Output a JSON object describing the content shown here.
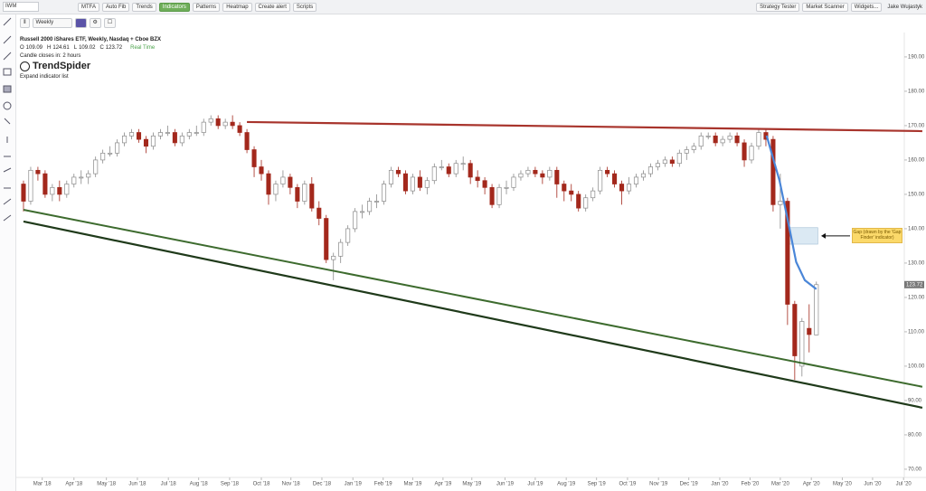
{
  "toolbar": {
    "symbol": "IWM",
    "interval": "Weekly",
    "buttons": [
      "MTFA",
      "Auto Fib",
      "Trends",
      "Indicators",
      "Patterns",
      "Heatmap",
      "Create alert",
      "Scripts"
    ],
    "active_button": 3,
    "right_buttons": [
      "Strategy Tester",
      "Market Scanner",
      "Widgets..."
    ],
    "user": "Jake Wujastyk"
  },
  "chart_data": {
    "type": "candlestick",
    "title": "Russell 2000 iShares ETF, Weekly, Nasdaq + Cboe BZX",
    "ohlc_letters": [
      "O",
      "H",
      "L",
      "C"
    ],
    "status": "Real Time",
    "subtitle": "Candle closes in: 2 hours",
    "brand": "TrendSpider",
    "expand": "Expand indicator list",
    "up_color": "#8a8a8a",
    "down_color": "#a3281c",
    "open": [
      153,
      148,
      157,
      156,
      150,
      152,
      150,
      153,
      155,
      155,
      156,
      160,
      162,
      162,
      165,
      167,
      168,
      166,
      164,
      167,
      168,
      168,
      165,
      167,
      168,
      168,
      171,
      172,
      170,
      171,
      170,
      168,
      163,
      158,
      156,
      150,
      153,
      155,
      152,
      148,
      153,
      146,
      143,
      131,
      132,
      136,
      140,
      145,
      145,
      148,
      148,
      153,
      157,
      156,
      151,
      155,
      152,
      154,
      158,
      158,
      156,
      159,
      159,
      155,
      154,
      152,
      147,
      152,
      152,
      155,
      156,
      157,
      156,
      155,
      157,
      153,
      151,
      150,
      146,
      149,
      151,
      157,
      156,
      153,
      151,
      153,
      155,
      156,
      158,
      159,
      160,
      159,
      162,
      163,
      164,
      167,
      167,
      165,
      166,
      167,
      165,
      160,
      164,
      168,
      166,
      147,
      148,
      118,
      100,
      111,
      109.09
    ],
    "high": [
      154,
      158,
      158,
      157,
      153,
      154,
      154,
      156,
      157,
      157,
      161,
      163,
      164,
      166,
      168,
      169,
      169,
      167,
      168,
      169,
      170,
      169,
      168,
      169,
      170,
      172,
      173,
      173,
      172,
      173,
      171,
      169,
      164,
      160,
      157,
      154,
      157,
      156,
      153,
      154,
      155,
      148,
      144,
      133,
      137,
      141,
      146,
      147,
      149,
      150,
      154,
      158,
      158,
      157,
      156,
      157,
      155,
      159,
      160,
      159,
      160,
      161,
      160,
      157,
      155,
      153,
      153,
      154,
      156,
      157,
      158,
      158,
      157,
      158,
      158,
      154,
      153,
      151,
      150,
      152,
      158,
      158,
      157,
      154,
      155,
      156,
      157,
      159,
      160,
      161,
      161,
      163,
      164,
      165,
      168,
      168,
      168,
      167,
      168,
      168,
      166,
      165,
      169,
      169,
      167,
      156,
      149,
      119,
      114,
      118,
      124.61
    ],
    "low": [
      145,
      147,
      154,
      149,
      148,
      148,
      149,
      152,
      153,
      153,
      155,
      159,
      161,
      161,
      164,
      166,
      165,
      162,
      163,
      166,
      167,
      164,
      164,
      166,
      167,
      167,
      170,
      169,
      169,
      169,
      167,
      162,
      155,
      154,
      147,
      148,
      152,
      150,
      146,
      147,
      145,
      141,
      130,
      125,
      130,
      135,
      139,
      143,
      144,
      146,
      147,
      152,
      155,
      150,
      150,
      151,
      150,
      153,
      157,
      155,
      155,
      157,
      153,
      152,
      150,
      146,
      146,
      150,
      151,
      154,
      155,
      155,
      153,
      154,
      149,
      148,
      148,
      145,
      145,
      148,
      150,
      155,
      152,
      147,
      150,
      152,
      154,
      155,
      157,
      158,
      158,
      158,
      160,
      162,
      163,
      166,
      164,
      164,
      165,
      164,
      158,
      159,
      163,
      164,
      145,
      140,
      112,
      96,
      97,
      104,
      109.02
    ],
    "close": [
      148,
      157,
      156,
      150,
      152,
      150,
      153,
      155,
      155,
      156,
      160,
      162,
      162,
      165,
      167,
      168,
      166,
      164,
      167,
      168,
      168,
      165,
      167,
      168,
      168,
      171,
      172,
      170,
      171,
      170,
      168,
      163,
      158,
      156,
      150,
      153,
      155,
      152,
      148,
      153,
      146,
      143,
      131,
      132,
      136,
      140,
      145,
      145,
      148,
      148,
      153,
      157,
      156,
      151,
      155,
      152,
      154,
      158,
      158,
      156,
      159,
      159,
      155,
      154,
      152,
      147,
      152,
      152,
      155,
      156,
      157,
      156,
      155,
      157,
      153,
      151,
      150,
      146,
      149,
      151,
      157,
      156,
      153,
      151,
      153,
      155,
      156,
      158,
      159,
      160,
      159,
      162,
      163,
      164,
      167,
      167,
      165,
      166,
      167,
      165,
      160,
      164,
      168,
      166,
      147,
      148,
      118,
      103,
      113,
      109.2,
      123.72
    ],
    "xlim": [
      -0.75,
      122.2
    ],
    "xticks": [
      {
        "value": 2.6,
        "label": "Mar '18"
      },
      {
        "value": 7.0,
        "label": "Apr '18"
      },
      {
        "value": 11.5,
        "label": "May '18"
      },
      {
        "value": 15.8,
        "label": "Jun '18"
      },
      {
        "value": 20.1,
        "label": "Jul '18"
      },
      {
        "value": 24.3,
        "label": "Aug '18"
      },
      {
        "value": 28.6,
        "label": "Sep '18"
      },
      {
        "value": 33.0,
        "label": "Oct '18"
      },
      {
        "value": 37.1,
        "label": "Nov '18"
      },
      {
        "value": 41.4,
        "label": "Dec '18"
      },
      {
        "value": 45.7,
        "label": "Jan '19"
      },
      {
        "value": 49.9,
        "label": "Feb '19"
      },
      {
        "value": 54.0,
        "label": "Mar '19"
      },
      {
        "value": 58.2,
        "label": "Apr '19"
      },
      {
        "value": 62.2,
        "label": "May '19"
      },
      {
        "value": 66.8,
        "label": "Jun '19"
      },
      {
        "value": 71.0,
        "label": "Jul '19"
      },
      {
        "value": 75.3,
        "label": "Aug '19"
      },
      {
        "value": 79.5,
        "label": "Sep '19"
      },
      {
        "value": 83.8,
        "label": "Oct '19"
      },
      {
        "value": 88.1,
        "label": "Nov '19"
      },
      {
        "value": 92.3,
        "label": "Dec '19"
      },
      {
        "value": 96.6,
        "label": "Jan '20"
      },
      {
        "value": 100.8,
        "label": "Feb '20"
      },
      {
        "value": 105.0,
        "label": "Mar '20"
      },
      {
        "value": 109.3,
        "label": "Apr '20"
      },
      {
        "value": 113.6,
        "label": "May '20"
      },
      {
        "value": 117.8,
        "label": "Jun '20"
      },
      {
        "value": 122.1,
        "label": "Jul '20"
      }
    ],
    "ylim": [
      68.4,
      193.4
    ],
    "yticks": [
      {
        "value": 190,
        "label": "190.00"
      },
      {
        "value": 180,
        "label": "180.00"
      },
      {
        "value": 170,
        "label": "170.00"
      },
      {
        "value": 160,
        "label": "160.00"
      },
      {
        "value": 150,
        "label": "150.00"
      },
      {
        "value": 140,
        "label": "140.00"
      },
      {
        "value": 130,
        "label": "130.00"
      },
      {
        "value": 120,
        "label": "120.00"
      },
      {
        "value": 110,
        "label": "110.00"
      },
      {
        "value": 100,
        "label": "100.00"
      },
      {
        "value": 90,
        "label": "90.00"
      },
      {
        "value": 80,
        "label": "80.00"
      },
      {
        "value": 70,
        "label": "70.00"
      }
    ],
    "trendlines": [
      {
        "color": "#a8342c",
        "width": 2.2,
        "x": [
          31.0,
          124.7
        ],
        "y": [
          171.05,
          168.4
        ]
      },
      {
        "color": "#3d6b2e",
        "width": 2,
        "x": [
          0,
          124.7
        ],
        "y": [
          145.5,
          94.0
        ]
      },
      {
        "color": "#1f3a1a",
        "width": 2.2,
        "x": [
          0,
          124.7
        ],
        "y": [
          142.1,
          87.9
        ]
      },
      {
        "color": "#4a86d8",
        "width": 2.2,
        "x": [
          103.1,
          104.9,
          106.2,
          107.2,
          108.4,
          110.0
        ],
        "y": [
          167.1,
          153.9,
          140.8,
          130.3,
          125.0,
          122.4
        ]
      }
    ],
    "gap": {
      "x": [
        106.2,
        110.2
      ],
      "y": [
        140.3,
        135.5
      ],
      "label": "Gap (drawn by the 'Gap Finder' indicator)"
    }
  }
}
